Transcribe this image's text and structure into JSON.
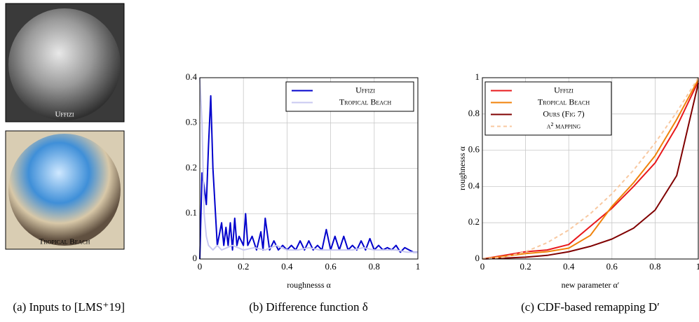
{
  "images": [
    {
      "label": "Uffizi"
    },
    {
      "label": "Tropical Beach"
    }
  ],
  "captions": [
    "(a) Inputs to [LMS⁺19]",
    "(b) Difference function δ",
    "(c) CDF-based remapping D′"
  ],
  "chart_data": [
    {
      "type": "line",
      "xlabel": "roughnesss α",
      "xlim": [
        0,
        1
      ],
      "ylim": [
        0,
        0.4
      ],
      "xticks": [
        0,
        0.2,
        0.4,
        0.6,
        0.8,
        1
      ],
      "yticks": [
        0,
        0.1,
        0.2,
        0.3,
        0.4
      ],
      "grid": true,
      "legend": "top-right",
      "series": [
        {
          "name": "Uffizi",
          "color": "#0000cc",
          "x": [
            0,
            0.01,
            0.02,
            0.03,
            0.04,
            0.05,
            0.06,
            0.08,
            0.1,
            0.11,
            0.12,
            0.13,
            0.14,
            0.15,
            0.16,
            0.17,
            0.18,
            0.2,
            0.21,
            0.22,
            0.24,
            0.26,
            0.28,
            0.29,
            0.3,
            0.32,
            0.34,
            0.36,
            0.38,
            0.4,
            0.42,
            0.44,
            0.46,
            0.48,
            0.5,
            0.52,
            0.54,
            0.56,
            0.58,
            0.6,
            0.62,
            0.64,
            0.66,
            0.68,
            0.7,
            0.72,
            0.74,
            0.76,
            0.78,
            0.8,
            0.82,
            0.84,
            0.86,
            0.88,
            0.9,
            0.92,
            0.94,
            0.96,
            0.98,
            1.0
          ],
          "values": [
            0,
            0.19,
            0.16,
            0.12,
            0.25,
            0.36,
            0.2,
            0.03,
            0.08,
            0.03,
            0.07,
            0.03,
            0.08,
            0.02,
            0.09,
            0.03,
            0.05,
            0.03,
            0.1,
            0.03,
            0.05,
            0.02,
            0.06,
            0.02,
            0.09,
            0.02,
            0.04,
            0.02,
            0.03,
            0.02,
            0.03,
            0.02,
            0.04,
            0.02,
            0.04,
            0.02,
            0.03,
            0.02,
            0.065,
            0.02,
            0.05,
            0.02,
            0.05,
            0.02,
            0.03,
            0.02,
            0.04,
            0.02,
            0.045,
            0.02,
            0.03,
            0.02,
            0.025,
            0.02,
            0.03,
            0.015,
            0.025,
            0.02,
            0.015,
            0.015
          ]
        },
        {
          "name": "Tropical Beach",
          "color": "#c8c8f0",
          "x": [
            0,
            0.01,
            0.02,
            0.03,
            0.04,
            0.06,
            0.08,
            0.1,
            0.15,
            0.2,
            0.25,
            0.3,
            0.35,
            0.4,
            0.45,
            0.5,
            0.55,
            0.6,
            0.65,
            0.7,
            0.75,
            0.8,
            0.85,
            0.9,
            0.95,
            1.0
          ],
          "values": [
            0.4,
            0.3,
            0.1,
            0.05,
            0.03,
            0.02,
            0.03,
            0.02,
            0.03,
            0.02,
            0.025,
            0.02,
            0.03,
            0.02,
            0.02,
            0.025,
            0.02,
            0.02,
            0.02,
            0.02,
            0.025,
            0.02,
            0.02,
            0.02,
            0.015,
            0.015
          ]
        }
      ]
    },
    {
      "type": "line",
      "xlabel": "new parameter α′",
      "ylabel": "roughnesss α",
      "xlim": [
        0,
        1
      ],
      "ylim": [
        0,
        1
      ],
      "xticks": [
        0,
        0.2,
        0.4,
        0.6,
        0.8,
        1
      ],
      "yticks": [
        0,
        0.2,
        0.4,
        0.6,
        0.8,
        1
      ],
      "grid": true,
      "legend": "top-left",
      "series": [
        {
          "name": "Uffizi",
          "color": "#e8181c",
          "x": [
            0,
            0.1,
            0.2,
            0.3,
            0.4,
            0.5,
            0.6,
            0.7,
            0.8,
            0.9,
            1
          ],
          "values": [
            0,
            0.02,
            0.04,
            0.05,
            0.08,
            0.18,
            0.28,
            0.4,
            0.53,
            0.73,
            0.98
          ]
        },
        {
          "name": "Tropical Beach",
          "color": "#f0820a",
          "x": [
            0,
            0.1,
            0.2,
            0.3,
            0.4,
            0.5,
            0.6,
            0.7,
            0.8,
            0.9,
            1
          ],
          "values": [
            0,
            0.015,
            0.03,
            0.04,
            0.06,
            0.13,
            0.29,
            0.42,
            0.57,
            0.77,
            0.99
          ]
        },
        {
          "name": "Ours (Fig 7)",
          "color": "#800000",
          "x": [
            0,
            0.1,
            0.2,
            0.3,
            0.4,
            0.5,
            0.6,
            0.7,
            0.8,
            0.9,
            1
          ],
          "values": [
            0,
            0.005,
            0.01,
            0.02,
            0.04,
            0.07,
            0.11,
            0.17,
            0.27,
            0.46,
            0.97
          ]
        },
        {
          "name": "α² mapping",
          "color": "#f8c8a0",
          "dashed": true,
          "x": [
            0,
            0.1,
            0.2,
            0.3,
            0.4,
            0.5,
            0.6,
            0.7,
            0.8,
            0.9,
            1
          ],
          "values": [
            0,
            0.01,
            0.04,
            0.09,
            0.16,
            0.25,
            0.36,
            0.49,
            0.64,
            0.81,
            1
          ]
        }
      ]
    }
  ]
}
